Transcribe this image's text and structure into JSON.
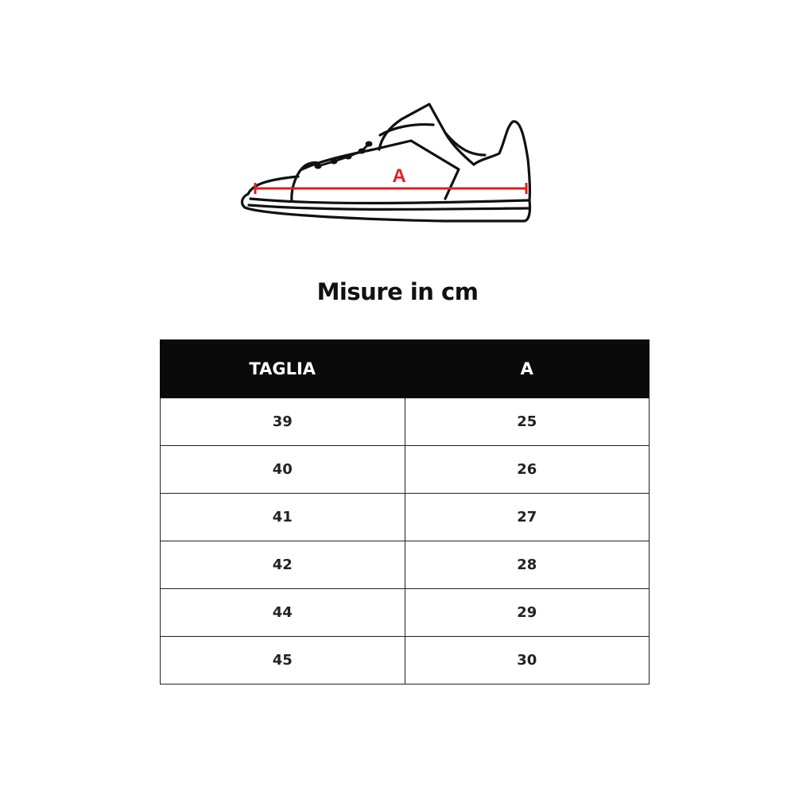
{
  "illustration": {
    "measure_label": "A",
    "measure_color": "#e02020"
  },
  "title": "Misure in cm",
  "table": {
    "headers": [
      "TAGLIA",
      "A"
    ],
    "rows": [
      [
        "39",
        "25"
      ],
      [
        "40",
        "26"
      ],
      [
        "41",
        "27"
      ],
      [
        "42",
        "28"
      ],
      [
        "44",
        "29"
      ],
      [
        "45",
        "30"
      ]
    ]
  }
}
